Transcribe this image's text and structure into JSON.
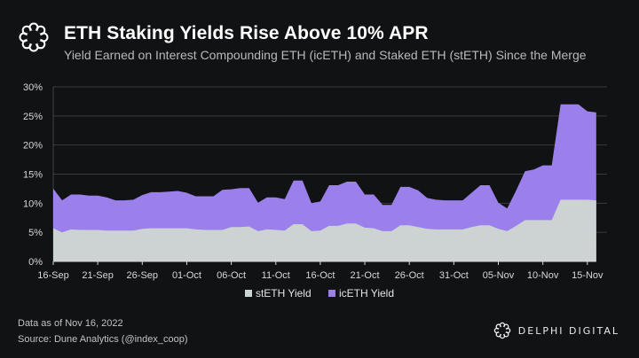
{
  "header": {
    "title": "ETH Staking Yields Rise Above 10% APR",
    "subtitle": "Yield Earned on Interest Compounding ETH (icETH) and Staked ETH (stETH) Since the Merge",
    "logo_icon": "delphi-knot-icon"
  },
  "footer": {
    "date_note": "Data as of Nov 16, 2022",
    "source": "Source: Dune Analytics (@index_coop)",
    "brand": "DELPHI DIGITAL",
    "brand_icon": "delphi-knot-icon"
  },
  "colors": {
    "background": "#111214",
    "steth": "#cdd3d2",
    "iceth": "#9b80ec",
    "grid": "#3a3b3e",
    "text": "#ffffff"
  },
  "chart_data": {
    "type": "area",
    "title": "ETH Staking Yields Rise Above 10% APR",
    "subtitle": "Yield Earned on Interest Compounding ETH (icETH) and Staked ETH (stETH) Since the Merge",
    "xlabel": "",
    "ylabel": "",
    "ylim": [
      0,
      30
    ],
    "yticks": [
      "0%",
      "5%",
      "10%",
      "15%",
      "20%",
      "25%",
      "30%"
    ],
    "ytick_values": [
      0,
      5,
      10,
      15,
      20,
      25,
      30
    ],
    "xticks": [
      "16-Sep",
      "21-Sep",
      "26-Sep",
      "01-Oct",
      "06-Oct",
      "11-Oct",
      "16-Oct",
      "21-Oct",
      "26-Oct",
      "31-Oct",
      "05-Nov",
      "10-Nov",
      "15-Nov"
    ],
    "xtick_every_days": 5,
    "grid": true,
    "legend_position": "bottom",
    "x_start": "2022-09-16",
    "x_end": "2022-11-16",
    "series": [
      {
        "name": "stETH Yield",
        "color": "#cdd3d2",
        "values": [
          5.7,
          5.0,
          5.5,
          5.4,
          5.4,
          5.4,
          5.3,
          5.3,
          5.3,
          5.3,
          5.6,
          5.7,
          5.7,
          5.7,
          5.7,
          5.7,
          5.5,
          5.4,
          5.4,
          5.4,
          5.9,
          5.9,
          6.0,
          5.2,
          5.5,
          5.4,
          5.3,
          6.4,
          6.4,
          5.2,
          5.3,
          6.1,
          6.1,
          6.5,
          6.5,
          5.8,
          5.7,
          5.2,
          5.2,
          6.2,
          6.2,
          5.9,
          5.6,
          5.5,
          5.5,
          5.5,
          5.5,
          5.9,
          6.2,
          6.2,
          5.6,
          5.2,
          6.1,
          7.1,
          7.1,
          7.1,
          7.1,
          10.6,
          10.6,
          10.6,
          10.6,
          10.5
        ]
      },
      {
        "name": "icETH Yield",
        "color": "#9b80ec",
        "values": [
          12.5,
          10.5,
          11.5,
          11.5,
          11.3,
          11.3,
          11.0,
          10.5,
          10.5,
          10.6,
          11.4,
          11.9,
          11.9,
          12.0,
          12.1,
          11.8,
          11.2,
          11.2,
          11.2,
          12.3,
          12.4,
          12.6,
          12.6,
          10.1,
          11.0,
          11.0,
          10.7,
          13.9,
          13.9,
          10.0,
          10.3,
          13.1,
          13.1,
          13.7,
          13.7,
          11.5,
          11.5,
          9.7,
          9.7,
          12.8,
          12.8,
          12.2,
          10.9,
          10.6,
          10.5,
          10.5,
          10.5,
          11.8,
          13.1,
          13.1,
          10.1,
          9.1,
          12.2,
          15.5,
          15.8,
          16.5,
          16.5,
          27.0,
          27.0,
          27.0,
          25.8,
          25.6
        ]
      }
    ]
  }
}
